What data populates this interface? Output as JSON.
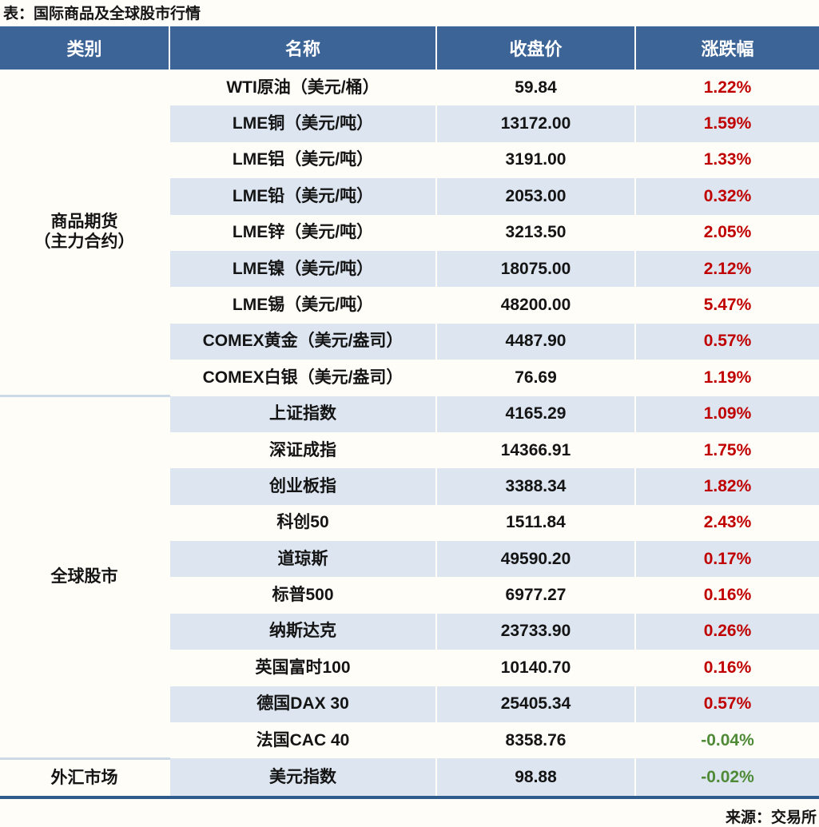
{
  "page": {
    "title": "表：国际商品及全球股市行情",
    "source": "来源：交易所"
  },
  "colors": {
    "header_bg": "#3c6496",
    "row_stripe": "#dce5f0",
    "up_red": "#c00000",
    "down_green": "#4f8a36",
    "category_divider": "#ccd9e6",
    "bottom_border": "#2f5b8d"
  },
  "chart_data": {
    "type": "table",
    "title": "表：国际商品及全球股市行情",
    "source": "来源：交易所",
    "columns": [
      "类别",
      "名称",
      "收盘价",
      "涨跌幅"
    ],
    "groups": [
      {
        "category": "商品期货（主力合约）",
        "category_lines": [
          "商品期货",
          "（主力合约）"
        ],
        "rows": [
          {
            "name": "WTI原油（美元/桶）",
            "close": "59.84",
            "change": "1.22%"
          },
          {
            "name": "LME铜（美元/吨）",
            "close": "13172.00",
            "change": "1.59%"
          },
          {
            "name": "LME铝（美元/吨）",
            "close": "3191.00",
            "change": "1.33%"
          },
          {
            "name": "LME铅（美元/吨）",
            "close": "2053.00",
            "change": "0.32%"
          },
          {
            "name": "LME锌（美元/吨）",
            "close": "3213.50",
            "change": "2.05%"
          },
          {
            "name": "LME镍（美元/吨）",
            "close": "18075.00",
            "change": "2.12%"
          },
          {
            "name": "LME锡（美元/吨）",
            "close": "48200.00",
            "change": "5.47%"
          },
          {
            "name": "COMEX黄金（美元/盎司）",
            "close": "4487.90",
            "change": "0.57%"
          },
          {
            "name": "COMEX白银（美元/盎司）",
            "close": "76.69",
            "change": "1.19%"
          }
        ]
      },
      {
        "category": "全球股市",
        "category_lines": [
          "全球股市"
        ],
        "rows": [
          {
            "name": "上证指数",
            "close": "4165.29",
            "change": "1.09%"
          },
          {
            "name": "深证成指",
            "close": "14366.91",
            "change": "1.75%"
          },
          {
            "name": "创业板指",
            "close": "3388.34",
            "change": "1.82%"
          },
          {
            "name": "科创50",
            "close": "1511.84",
            "change": "2.43%"
          },
          {
            "name": "道琼斯",
            "close": "49590.20",
            "change": "0.17%"
          },
          {
            "name": "标普500",
            "close": "6977.27",
            "change": "0.16%"
          },
          {
            "name": "纳斯达克",
            "close": "23733.90",
            "change": "0.26%"
          },
          {
            "name": "英国富时100",
            "close": "10140.70",
            "change": "0.16%"
          },
          {
            "name": "德国DAX 30",
            "close": "25405.34",
            "change": "0.57%"
          },
          {
            "name": "法国CAC 40",
            "close": "8358.76",
            "change": "-0.04%"
          }
        ]
      },
      {
        "category": "外汇市场",
        "category_lines": [
          "外汇市场"
        ],
        "rows": [
          {
            "name": "美元指数",
            "close": "98.88",
            "change": "-0.02%"
          }
        ]
      }
    ]
  }
}
